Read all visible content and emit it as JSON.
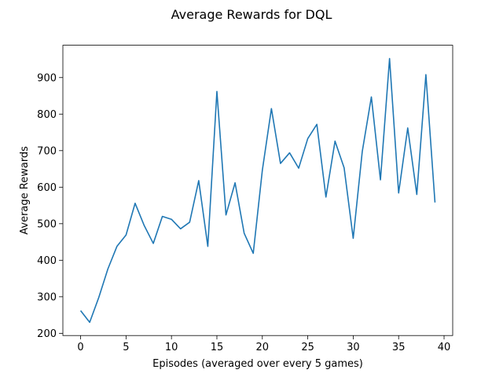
{
  "chart_data": {
    "type": "line",
    "title": "Average Rewards for DQL",
    "xlabel": "Episodes (averaged over every 5 games)",
    "ylabel": "Average Rewards",
    "xlim": [
      -1.95,
      40.95
    ],
    "ylim": [
      193.9,
      988.5
    ],
    "xticks": [
      0,
      5,
      10,
      15,
      20,
      25,
      30,
      35,
      40
    ],
    "yticks": [
      200,
      300,
      400,
      500,
      600,
      700,
      800,
      900
    ],
    "grid": false,
    "line_color": "#1f77b4",
    "series": [
      {
        "x": [
          0,
          1,
          2,
          3,
          4,
          5,
          6,
          7,
          8,
          9,
          10,
          11,
          12,
          13,
          14,
          15,
          16,
          17,
          18,
          19,
          20,
          21,
          22,
          23,
          24,
          25,
          26,
          27,
          28,
          29,
          30,
          31,
          32,
          33,
          34,
          35,
          36,
          37,
          38,
          39
        ],
        "values": [
          262,
          230,
          298,
          376,
          438,
          469,
          556,
          495,
          446,
          520,
          512,
          486,
          504,
          618,
          438,
          862,
          524,
          612,
          474,
          419,
          646,
          815,
          665,
          694,
          652,
          733,
          772,
          573,
          726,
          653,
          460,
          698,
          847,
          620,
          952,
          584,
          762,
          580,
          908,
          558
        ]
      }
    ]
  }
}
